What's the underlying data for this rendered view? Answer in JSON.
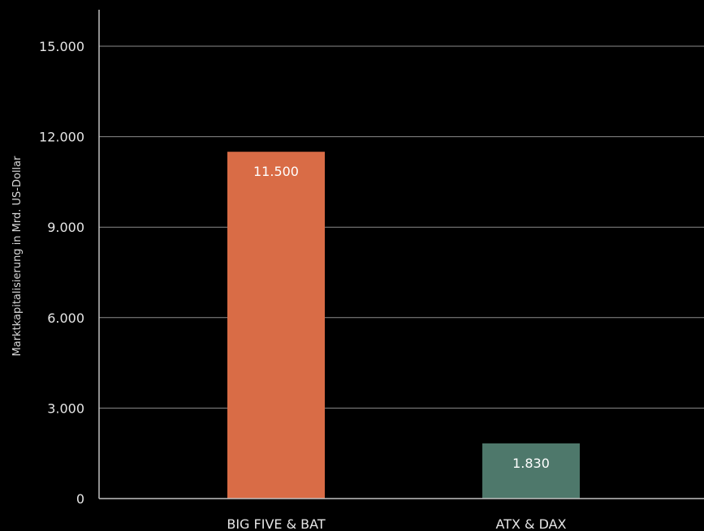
{
  "chart_data": {
    "type": "bar",
    "title": "",
    "xlabel": "",
    "ylabel": "Marktkapitalisierung in Mrd. US-Dollar",
    "categories": [
      "BIG FIVE & BAT",
      "ATX & DAX"
    ],
    "values": [
      11500,
      1830
    ],
    "value_labels": [
      "11.500",
      "1.830"
    ],
    "bar_colors": [
      "#d96c46",
      "#4e786b"
    ],
    "ylim": [
      0,
      15000
    ],
    "yticks": [
      0,
      3000,
      6000,
      9000,
      12000,
      15000
    ],
    "ytick_labels": [
      "0",
      "3.000",
      "6.000",
      "9.000",
      "12.000",
      "15.000"
    ],
    "grid": true,
    "legend": "none"
  },
  "colors": {
    "background": "#000000",
    "grid": "#8c8c8c",
    "axis": "#bfbfbf",
    "text": "#e6e6e6"
  }
}
